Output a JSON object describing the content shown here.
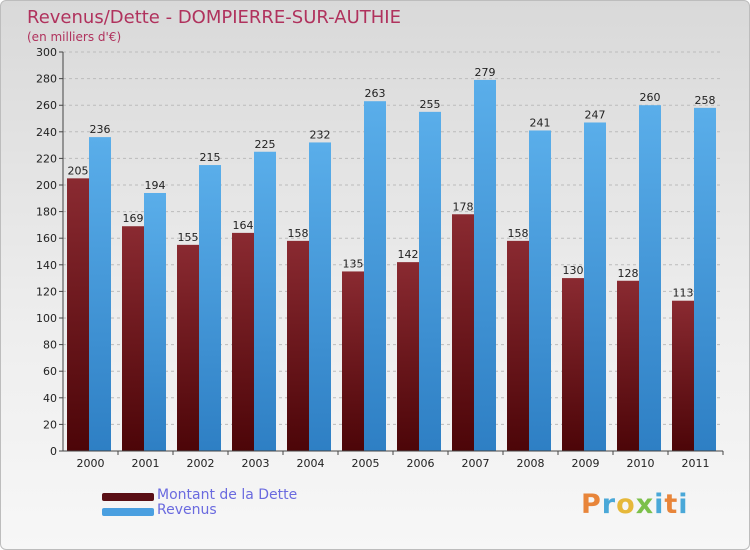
{
  "title": "Revenus/Dette - DOMPIERRE-SUR-AUTHIE",
  "subtitle": "(en milliers d'€)",
  "logo_text": "Proxiti",
  "colors": {
    "title": "#b0325d",
    "dette": "#7d1f27",
    "revenus": "#4a9fe0",
    "legend_text": "#6a6adf",
    "axis_text": "#222222"
  },
  "legend": [
    {
      "label": "Montant de la Dette",
      "color": "#5a0f15"
    },
    {
      "label": "Revenus",
      "color": "#4a9fe0"
    }
  ],
  "chart_data": {
    "type": "bar",
    "title": "Revenus/Dette - DOMPIERRE-SUR-AUTHIE",
    "subtitle": "(en milliers d'€)",
    "xlabel": "",
    "ylabel": "",
    "categories": [
      "2000",
      "2001",
      "2002",
      "2003",
      "2004",
      "2005",
      "2006",
      "2007",
      "2008",
      "2009",
      "2010",
      "2011"
    ],
    "series": [
      {
        "name": "Montant de la Dette",
        "values": [
          205,
          169,
          155,
          164,
          158,
          135,
          142,
          178,
          158,
          130,
          128,
          113
        ]
      },
      {
        "name": "Revenus",
        "values": [
          236,
          194,
          215,
          225,
          232,
          263,
          255,
          279,
          241,
          247,
          260,
          258
        ]
      }
    ],
    "ylim": [
      0,
      300
    ],
    "yticks": [
      0,
      20,
      40,
      60,
      80,
      100,
      120,
      140,
      160,
      180,
      200,
      220,
      240,
      260,
      280,
      300
    ],
    "grid": true,
    "legend_position": "bottom-left"
  }
}
